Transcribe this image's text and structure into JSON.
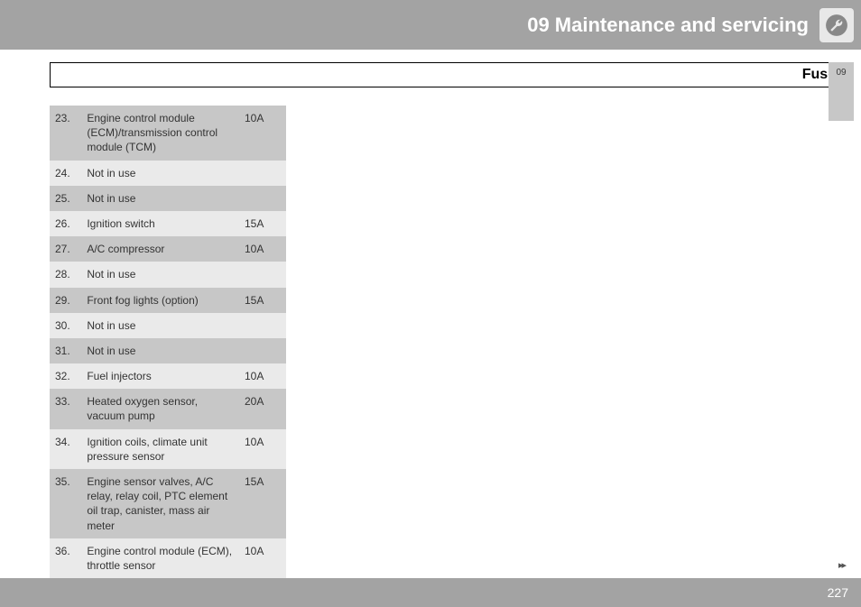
{
  "header": {
    "title": "09 Maintenance and servicing"
  },
  "section": {
    "title": "Fuses",
    "tab": "09"
  },
  "fuses": {
    "rows": [
      {
        "num": "23.",
        "desc": "Engine control module (ECM)/transmission control module (TCM)",
        "amp": "10A",
        "shade": "dark"
      },
      {
        "num": "24.",
        "desc": "Not in use",
        "amp": "",
        "shade": "light"
      },
      {
        "num": "25.",
        "desc": "Not in use",
        "amp": "",
        "shade": "dark"
      },
      {
        "num": "26.",
        "desc": "Ignition switch",
        "amp": "15A",
        "shade": "light"
      },
      {
        "num": "27.",
        "desc": "A/C compressor",
        "amp": "10A",
        "shade": "dark"
      },
      {
        "num": "28.",
        "desc": "Not in use",
        "amp": "",
        "shade": "light"
      },
      {
        "num": "29.",
        "desc": "Front fog lights (option)",
        "amp": "15A",
        "shade": "dark"
      },
      {
        "num": "30.",
        "desc": "Not in use",
        "amp": "",
        "shade": "light"
      },
      {
        "num": "31.",
        "desc": "Not in use",
        "amp": "",
        "shade": "dark"
      },
      {
        "num": "32.",
        "desc": "Fuel injectors",
        "amp": "10A",
        "shade": "light"
      },
      {
        "num": "33.",
        "desc": "Heated oxygen sensor, vacuum pump",
        "amp": "20A",
        "shade": "dark"
      },
      {
        "num": "34.",
        "desc": "Ignition coils, climate unit pressure sensor",
        "amp": "10A",
        "shade": "light"
      },
      {
        "num": "35.",
        "desc": "Engine sensor valves, A/C relay, relay coil, PTC element oil trap, canister, mass air meter",
        "amp": "15A",
        "shade": "dark"
      },
      {
        "num": "36.",
        "desc": "Engine control module (ECM), throttle sensor",
        "amp": "10A",
        "shade": "light"
      }
    ]
  },
  "footer": {
    "page": "227",
    "continue": "▸▸"
  }
}
